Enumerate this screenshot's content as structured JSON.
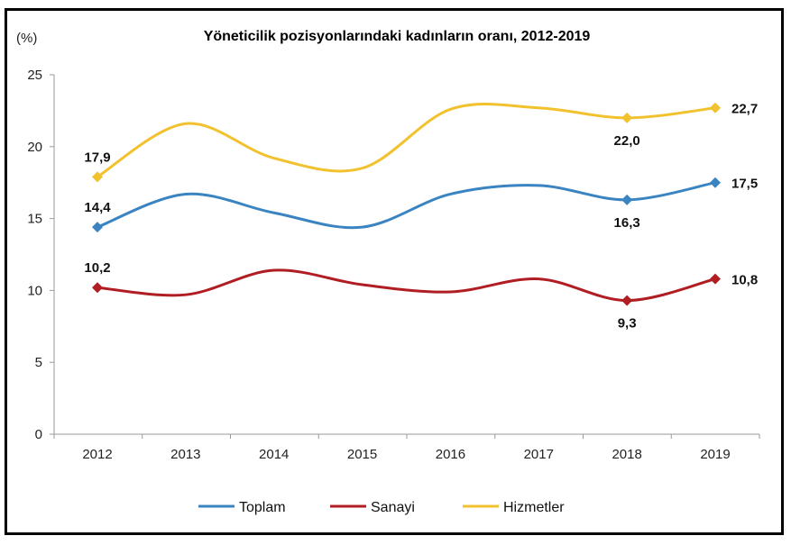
{
  "chart_data": {
    "type": "line",
    "title": "Yöneticilik pozisyonlarındaki kadınların oranı, 2012-2019",
    "ylabel": "(%)",
    "xlabel": "",
    "ylim": [
      0,
      25
    ],
    "yticks": [
      "0",
      "5",
      "10",
      "15",
      "20",
      "25"
    ],
    "categories": [
      "2012",
      "2013",
      "2014",
      "2015",
      "2016",
      "2017",
      "2018",
      "2019"
    ],
    "grid": false,
    "legend_position": "bottom",
    "smooth": true,
    "series": [
      {
        "name": "Toplam",
        "color": "#3a84c1",
        "values": [
          14.4,
          16.7,
          15.4,
          14.4,
          16.7,
          17.3,
          16.3,
          17.5
        ],
        "labels": [
          {
            "index": 0,
            "text": "14,4",
            "pos": "above"
          },
          {
            "index": 6,
            "text": "16,3",
            "pos": "below"
          },
          {
            "index": 7,
            "text": "17,5",
            "pos": "right"
          }
        ]
      },
      {
        "name": "Sanayi",
        "color": "#b01e23",
        "values": [
          10.2,
          9.7,
          11.4,
          10.4,
          9.9,
          10.8,
          9.3,
          10.8
        ],
        "labels": [
          {
            "index": 0,
            "text": "10,2",
            "pos": "above"
          },
          {
            "index": 6,
            "text": "9,3",
            "pos": "below"
          },
          {
            "index": 7,
            "text": "10,8",
            "pos": "right"
          }
        ]
      },
      {
        "name": "Hizmetler",
        "color": "#f2c12e",
        "values": [
          17.9,
          21.6,
          19.2,
          18.5,
          22.6,
          22.7,
          22.0,
          22.7
        ],
        "labels": [
          {
            "index": 0,
            "text": "17,9",
            "pos": "above"
          },
          {
            "index": 6,
            "text": "22,0",
            "pos": "below"
          },
          {
            "index": 7,
            "text": "22,7",
            "pos": "right"
          }
        ]
      }
    ],
    "markers_at": [
      0,
      6,
      7
    ]
  }
}
